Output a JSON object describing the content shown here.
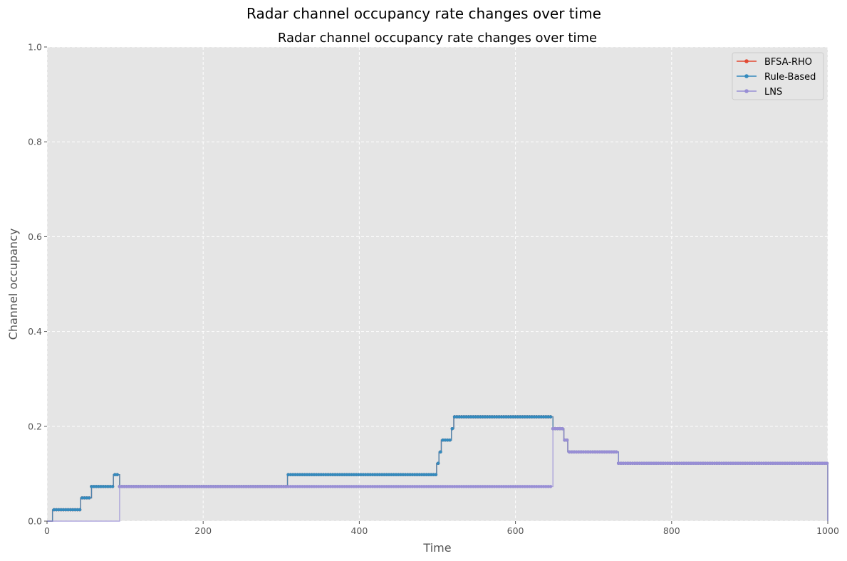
{
  "figure": {
    "suptitle": "Radar channel occupancy rate changes over time"
  },
  "chart_data": {
    "type": "line",
    "title": "Radar channel occupancy rate changes over time",
    "xlabel": "Time",
    "ylabel": "Channel occupancy",
    "xlim": [
      0,
      1000
    ],
    "ylim": [
      0,
      1
    ],
    "xticks": [
      "0",
      "200",
      "400",
      "600",
      "800",
      "1000"
    ],
    "yticks": [
      "0.0",
      "0.2",
      "0.4",
      "0.6",
      "0.8",
      "1.0"
    ],
    "grid": true,
    "legend_position": "top-right",
    "series": [
      {
        "name": "BFSA-RHO",
        "color": "#E24A33",
        "steps": [
          [
            0,
            0
          ],
          [
            7,
            0.024
          ],
          [
            43,
            0.049
          ],
          [
            57,
            0.073
          ],
          [
            85,
            0.098
          ],
          [
            93,
            0.073
          ],
          [
            308,
            0.098
          ],
          [
            499,
            0.122
          ],
          [
            502,
            0.146
          ],
          [
            505,
            0.171
          ],
          [
            518,
            0.195
          ],
          [
            521,
            0.22
          ],
          [
            648,
            0.195
          ],
          [
            662,
            0.171
          ],
          [
            667,
            0.146
          ],
          [
            732,
            0.122
          ],
          [
            999,
            0.122
          ],
          [
            1000,
            0
          ]
        ]
      },
      {
        "name": "Rule-Based",
        "color": "#348ABD",
        "steps": [
          [
            0,
            0
          ],
          [
            7,
            0.024
          ],
          [
            43,
            0.049
          ],
          [
            57,
            0.073
          ],
          [
            85,
            0.098
          ],
          [
            93,
            0.073
          ],
          [
            308,
            0.098
          ],
          [
            499,
            0.122
          ],
          [
            502,
            0.146
          ],
          [
            505,
            0.171
          ],
          [
            518,
            0.195
          ],
          [
            521,
            0.22
          ],
          [
            648,
            0.195
          ],
          [
            662,
            0.171
          ],
          [
            667,
            0.146
          ],
          [
            732,
            0.122
          ],
          [
            999,
            0.122
          ],
          [
            1000,
            0
          ]
        ]
      },
      {
        "name": "LNS",
        "color": "#988ED5",
        "steps": [
          [
            0,
            0
          ],
          [
            93,
            0.073
          ],
          [
            648,
            0.195
          ],
          [
            662,
            0.171
          ],
          [
            667,
            0.146
          ],
          [
            732,
            0.122
          ],
          [
            999,
            0.122
          ],
          [
            1000,
            0
          ]
        ]
      }
    ]
  }
}
